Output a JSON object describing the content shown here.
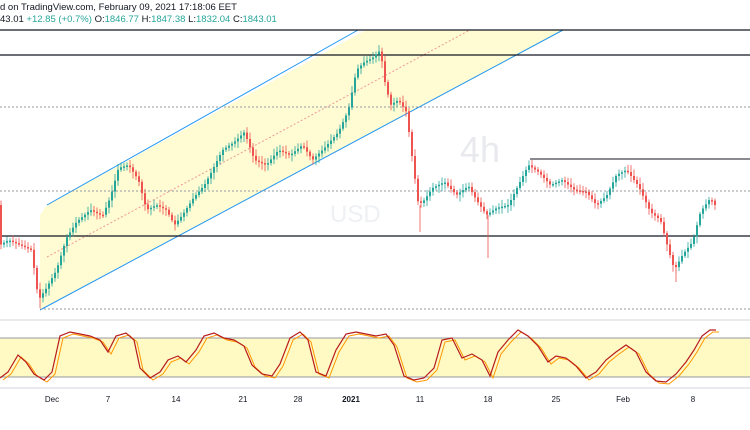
{
  "header": {
    "line1_text": "d on TradingView.com, February 09, 2021 17:18:06 EET",
    "line2": {
      "prev": "43.01",
      "change": "+12.85 (+0.7%)",
      "o_label": "O:",
      "o_value": "1846.77",
      "h_label": "H:",
      "h_value": "1847.38",
      "l_label": "L:",
      "l_value": "1832.04",
      "c_label": "C:",
      "c_value": "1843.01"
    }
  },
  "watermark": {
    "line1": "4h",
    "line2": "USD"
  },
  "x_axis": {
    "ticks": [
      {
        "label": "Dec",
        "bold": false
      },
      {
        "label": "7",
        "bold": false
      },
      {
        "label": "14",
        "bold": false
      },
      {
        "label": "21",
        "bold": false
      },
      {
        "label": "28",
        "bold": false
      },
      {
        "label": "2021",
        "bold": true
      },
      {
        "label": "11",
        "bold": false
      },
      {
        "label": "18",
        "bold": false
      },
      {
        "label": "25",
        "bold": false
      },
      {
        "label": "Feb",
        "bold": false
      },
      {
        "label": "8",
        "bold": false
      }
    ]
  },
  "colors": {
    "up": "#26a69a",
    "down": "#ef5350",
    "channel_line": "#2196f3",
    "channel_fill": "#fff9c4",
    "mid_line": "#ef9a9a",
    "hline": "#131722",
    "stoch_k": "#b71c1c",
    "stoch_d": "#ff9800",
    "stoch_band": "#fff9c4"
  }
}
